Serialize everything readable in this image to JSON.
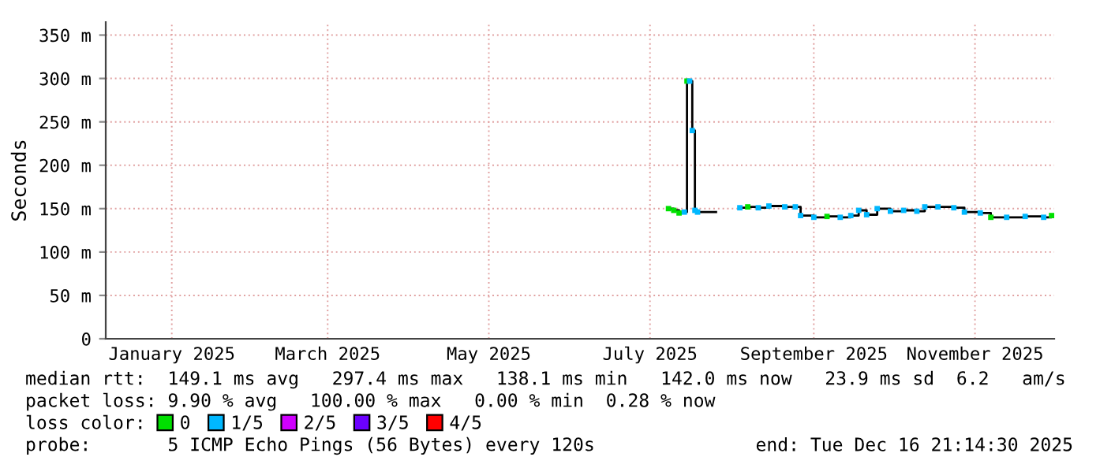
{
  "chart_data": {
    "type": "step",
    "ylabel": "Seconds",
    "legend_title": "loss color:",
    "x": [
      "2025-07-23",
      "2025-07-25",
      "2025-07-27",
      "2025-07-29",
      "2025-07-30",
      "2025-07-31",
      "2025-08-01",
      "2025-08-02",
      "2025-08-03",
      "2025-08-10",
      "2025-08-19",
      "2025-08-22",
      "2025-08-26",
      "2025-08-30",
      "2025-09-05",
      "2025-09-09",
      "2025-09-11",
      "2025-09-16",
      "2025-09-21",
      "2025-09-26",
      "2025-09-30",
      "2025-10-03",
      "2025-10-06",
      "2025-10-10",
      "2025-10-15",
      "2025-10-20",
      "2025-10-25",
      "2025-10-28",
      "2025-11-02",
      "2025-11-08",
      "2025-11-12",
      "2025-11-18",
      "2025-11-22",
      "2025-11-28",
      "2025-12-05",
      "2025-12-12",
      "2025-12-15"
    ],
    "series": [
      {
        "color": "#000000",
        "values": [
          150,
          148,
          145,
          146,
          297,
          297,
          240,
          148,
          146,
          null,
          151,
          152,
          151,
          153,
          152,
          152,
          142,
          140,
          141,
          140,
          142,
          148,
          143,
          150,
          147,
          148,
          147,
          152,
          152,
          151,
          146,
          145,
          140,
          140,
          141,
          140,
          142
        ]
      },
      {
        "type": "scatter",
        "marker": "square",
        "name": "0",
        "color": "#00e000",
        "values": [
          150,
          148,
          145,
          null,
          297,
          null,
          null,
          null,
          null,
          null,
          null,
          152,
          null,
          null,
          null,
          null,
          null,
          null,
          141,
          null,
          null,
          null,
          null,
          null,
          null,
          null,
          null,
          null,
          null,
          null,
          null,
          null,
          140,
          null,
          null,
          null,
          142
        ]
      },
      {
        "type": "scatter",
        "marker": "square",
        "name": "1/5",
        "color": "#00b8ff",
        "values": [
          null,
          null,
          null,
          146,
          null,
          297,
          240,
          148,
          146,
          null,
          151,
          null,
          151,
          153,
          152,
          152,
          142,
          140,
          null,
          140,
          142,
          148,
          143,
          150,
          147,
          148,
          147,
          152,
          152,
          151,
          146,
          145,
          null,
          140,
          141,
          140,
          null
        ]
      },
      {
        "type": "scatter",
        "marker": "square",
        "name": "2/5",
        "color": "#d000ff",
        "values": [
          null,
          null,
          null,
          null,
          null,
          null,
          null,
          null,
          null,
          null,
          null,
          null,
          null,
          null,
          null,
          null,
          null,
          null,
          null,
          null,
          null,
          null,
          null,
          null,
          null,
          null,
          null,
          null,
          null,
          null,
          null,
          null,
          null,
          null,
          null,
          null,
          null
        ]
      },
      {
        "type": "scatter",
        "marker": "square",
        "name": "3/5",
        "color": "#6c00ff",
        "values": [
          null,
          null,
          null,
          null,
          null,
          null,
          null,
          null,
          null,
          null,
          null,
          null,
          null,
          null,
          null,
          null,
          null,
          null,
          null,
          null,
          null,
          null,
          null,
          null,
          null,
          null,
          null,
          null,
          null,
          null,
          null,
          null,
          null,
          null,
          null,
          null,
          null
        ]
      },
      {
        "type": "scatter",
        "marker": "square",
        "name": "4/5",
        "color": "#ff0000",
        "values": [
          null,
          null,
          null,
          null,
          null,
          null,
          null,
          null,
          null,
          null,
          null,
          null,
          null,
          null,
          null,
          null,
          null,
          null,
          null,
          null,
          null,
          null,
          null,
          null,
          null,
          null,
          null,
          null,
          null,
          null,
          null,
          null,
          null,
          null,
          null,
          null,
          null
        ]
      }
    ],
    "ylim": [
      0,
      365
    ],
    "yticks": [
      0,
      {
        "value": 50,
        "label": "50 m"
      },
      {
        "value": 100,
        "label": "100 m"
      },
      {
        "value": 150,
        "label": "150 m"
      },
      {
        "value": 200,
        "label": "200 m"
      },
      {
        "value": 250,
        "label": "250 m"
      },
      {
        "value": 300,
        "label": "300 m"
      },
      {
        "value": 350,
        "label": "350 m"
      }
    ],
    "xlim": [
      "2024-12-22",
      "2025-12-16"
    ],
    "xticks": [
      {
        "value": "2025-01-16",
        "label": "January 2025"
      },
      {
        "value": "2025-03-16",
        "label": "March 2025"
      },
      {
        "value": "2025-05-16",
        "label": "May 2025"
      },
      {
        "value": "2025-07-16",
        "label": "July 2025"
      },
      {
        "value": "2025-09-16",
        "label": "September 2025"
      },
      {
        "value": "2025-11-16",
        "label": "November 2025"
      }
    ],
    "grid": true,
    "legend": "bottom",
    "annotations": [
      "median rtt:  149.1 ms avg   297.4 ms max   138.1 ms min   142.0 ms now   23.9 ms sd  6.2   am/s",
      "packet loss: 9.90 % avg   100.00 % max   0.00 % min  0.28 % now",
      "probe:       5 ICMP Echo Pings (56 Bytes) every 120s",
      "end: Tue Dec 16 21:14:30 2025"
    ]
  }
}
